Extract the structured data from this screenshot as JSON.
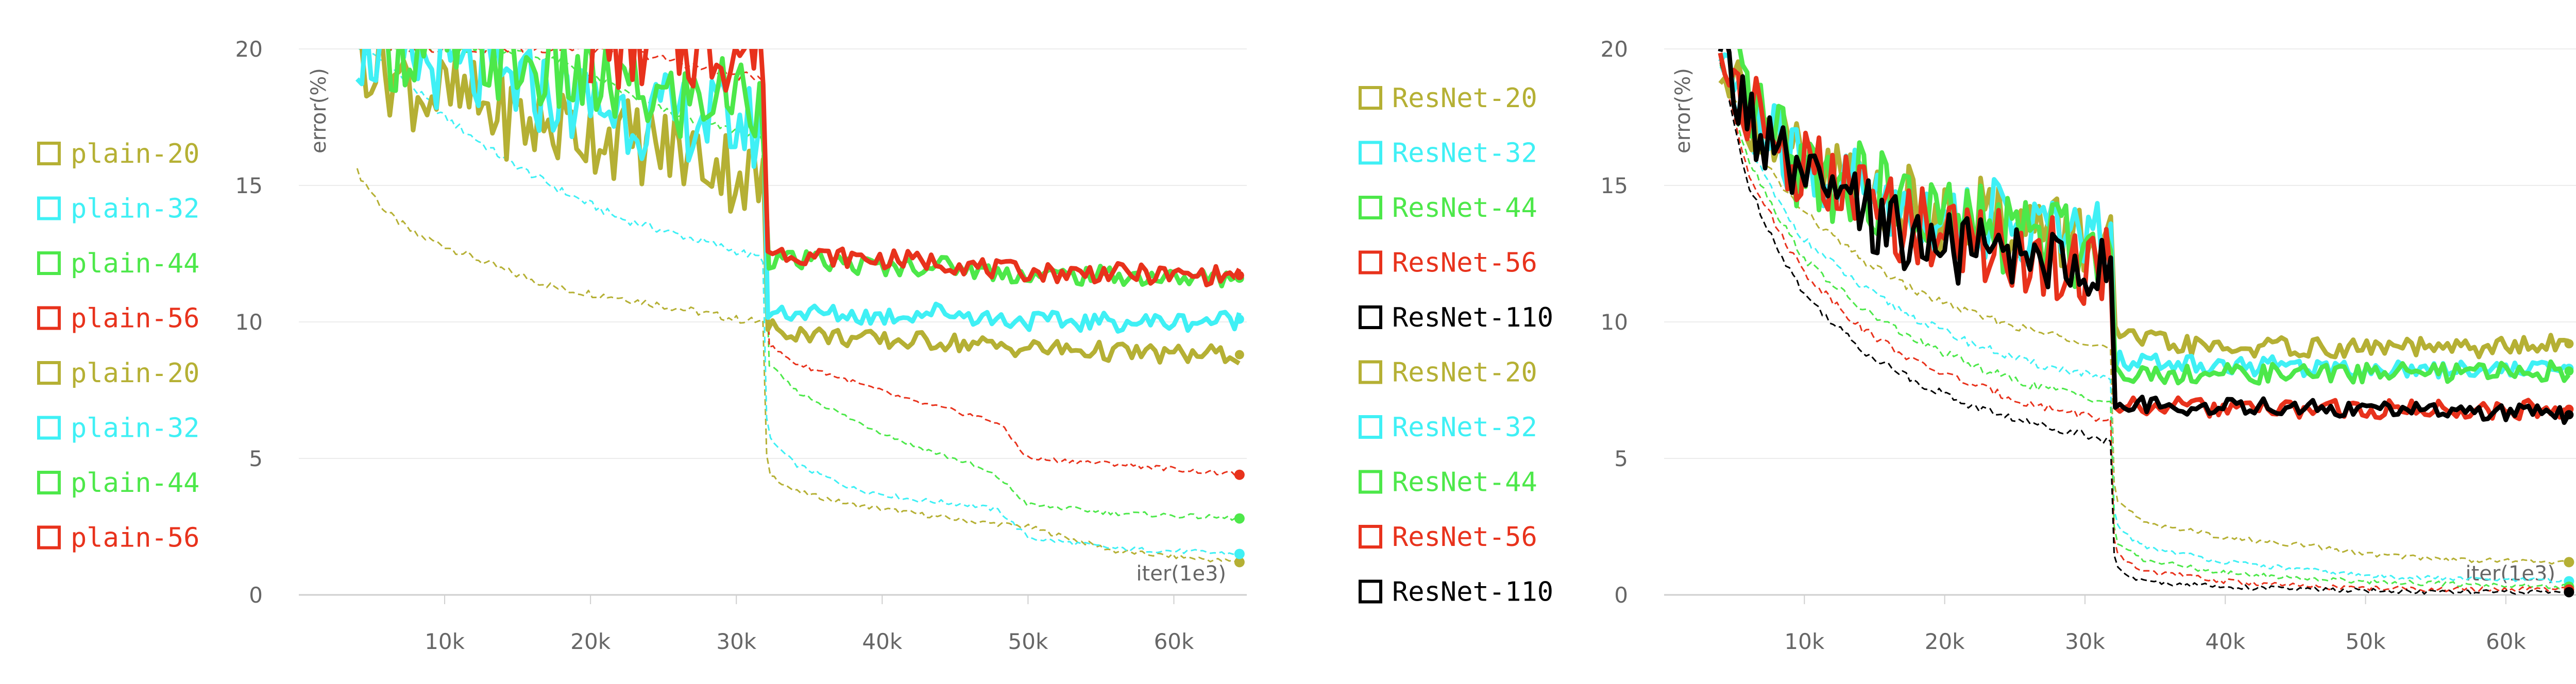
{
  "chart_data": [
    {
      "type": "line",
      "ylabel": "error(%)",
      "xlabel": "iter(1e3)",
      "xlim": [
        0,
        65000
      ],
      "ylim": [
        0,
        20
      ],
      "xticks": [
        {
          "value": 10000,
          "label": "10k"
        },
        {
          "value": 20000,
          "label": "20k"
        },
        {
          "value": 30000,
          "label": "30k"
        },
        {
          "value": 40000,
          "label": "40k"
        },
        {
          "value": 50000,
          "label": "50k"
        },
        {
          "value": 60000,
          "label": "60k"
        }
      ],
      "yticks": [
        {
          "value": 0,
          "label": "0"
        },
        {
          "value": 5,
          "label": "5"
        },
        {
          "value": 10,
          "label": "10"
        },
        {
          "value": 15,
          "label": "15"
        },
        {
          "value": 20,
          "label": "20"
        }
      ],
      "grid": true,
      "legend_position": "left",
      "legend": [
        {
          "label": "plain-20",
          "color": "#b5b034"
        },
        {
          "label": "plain-32",
          "color": "#3ff0f5"
        },
        {
          "label": "plain-44",
          "color": "#4de84a"
        },
        {
          "label": "plain-56",
          "color": "#e8321c"
        },
        {
          "label": "plain-20",
          "color": "#b5b034"
        },
        {
          "label": "plain-32",
          "color": "#3ff0f5"
        },
        {
          "label": "plain-44",
          "color": "#4de84a"
        },
        {
          "label": "plain-56",
          "color": "#e8321c"
        }
      ],
      "series": [
        {
          "name": "plain-20",
          "split": "train",
          "color": "#b5b034",
          "x": [
            4000,
            6000,
            8000,
            10000,
            14000,
            18000,
            22000,
            26000,
            30000,
            31900,
            32100,
            34000,
            38000,
            42000,
            46000,
            50000,
            56000,
            64500
          ],
          "y": [
            15.5,
            14.0,
            13.2,
            12.8,
            11.9,
            11.2,
            10.9,
            10.5,
            10.1,
            10.0,
            4.5,
            3.8,
            3.3,
            3.0,
            2.7,
            2.5,
            1.6,
            1.2
          ]
        },
        {
          "name": "plain-32",
          "split": "train",
          "color": "#3ff0f5",
          "x": [
            4000,
            6000,
            10000,
            14000,
            18000,
            22000,
            26000,
            30000,
            31900,
            32100,
            34000,
            38000,
            42000,
            46000,
            48000,
            50000,
            56000,
            64500
          ],
          "y": [
            20,
            19.5,
            17.5,
            16.0,
            14.8,
            13.8,
            13.2,
            12.6,
            12.3,
            5.8,
            4.8,
            3.9,
            3.5,
            3.3,
            3.1,
            2.1,
            1.7,
            1.5
          ]
        },
        {
          "name": "plain-44",
          "split": "train",
          "color": "#4de84a",
          "x": [
            6000,
            10000,
            14000,
            18000,
            22000,
            26000,
            30000,
            31900,
            32100,
            34000,
            38000,
            42000,
            46000,
            48000,
            50000,
            56000,
            64500
          ],
          "y": [
            20,
            20,
            20,
            19.5,
            18.5,
            17.5,
            17.0,
            16.8,
            8.5,
            7.5,
            6.4,
            5.5,
            4.8,
            4.3,
            3.3,
            3.0,
            2.8
          ]
        },
        {
          "name": "plain-56",
          "split": "train",
          "color": "#e8321c",
          "x": [
            6000,
            10000,
            14000,
            18000,
            22000,
            26000,
            30000,
            31900,
            32100,
            34000,
            38000,
            42000,
            46000,
            48000,
            50000,
            56000,
            64500
          ],
          "y": [
            20,
            20,
            20,
            20,
            20,
            19.5,
            19.0,
            19.0,
            9.2,
            8.5,
            7.8,
            7.1,
            6.6,
            6.3,
            5.0,
            4.8,
            4.4
          ]
        },
        {
          "name": "plain-20",
          "split": "test",
          "color": "#b5b034",
          "x": [
            4000,
            8000,
            12000,
            16000,
            20000,
            24000,
            28000,
            31900,
            32100,
            36000,
            40000,
            44000,
            48000,
            52000,
            56000,
            60000,
            64500
          ],
          "y": [
            20,
            18.5,
            18.0,
            17.2,
            17.0,
            16.5,
            16.0,
            15.0,
            9.8,
            9.5,
            9.3,
            9.3,
            9.1,
            9.0,
            8.9,
            8.8,
            8.8
          ]
        },
        {
          "name": "plain-32",
          "split": "test",
          "color": "#3ff0f5",
          "x": [
            4000,
            8000,
            12000,
            16000,
            20000,
            24000,
            28000,
            31900,
            32100,
            36000,
            40000,
            44000,
            48000,
            52000,
            56000,
            60000,
            64500
          ],
          "y": [
            20,
            19.5,
            19.0,
            18.5,
            18.0,
            17.5,
            17.5,
            17.0,
            10.4,
            10.3,
            10.2,
            10.4,
            10.1,
            10.0,
            10.0,
            10.0,
            10.1
          ]
        },
        {
          "name": "plain-44",
          "split": "test",
          "color": "#4de84a",
          "x": [
            6000,
            10000,
            14000,
            18000,
            22000,
            26000,
            30000,
            31900,
            32100,
            36000,
            40000,
            44000,
            48000,
            52000,
            56000,
            60000,
            64500
          ],
          "y": [
            20,
            20,
            19.5,
            19.0,
            18.5,
            18.0,
            18.5,
            18.0,
            12.3,
            12.2,
            12.0,
            12.1,
            11.8,
            11.7,
            11.7,
            11.6,
            11.6
          ]
        },
        {
          "name": "plain-56",
          "split": "test",
          "color": "#e8321c",
          "x": [
            20000,
            24000,
            28000,
            31900,
            32100,
            36000,
            40000,
            44000,
            48000,
            52000,
            56000,
            60000,
            64500
          ],
          "y": [
            20,
            20,
            20,
            20,
            12.6,
            12.4,
            12.3,
            12.2,
            11.9,
            11.8,
            11.8,
            11.7,
            11.7
          ]
        }
      ]
    },
    {
      "type": "line",
      "ylabel": "error(%)",
      "xlabel": "iter(1e3)",
      "xlim": [
        0,
        65000
      ],
      "ylim": [
        0,
        20
      ],
      "xticks": [
        {
          "value": 10000,
          "label": "10k"
        },
        {
          "value": 20000,
          "label": "20k"
        },
        {
          "value": 30000,
          "label": "30k"
        },
        {
          "value": 40000,
          "label": "40k"
        },
        {
          "value": 50000,
          "label": "50k"
        },
        {
          "value": 60000,
          "label": "60k"
        }
      ],
      "yticks": [
        {
          "value": 0,
          "label": "0"
        },
        {
          "value": 5,
          "label": "5"
        },
        {
          "value": 10,
          "label": "10"
        },
        {
          "value": 15,
          "label": "15"
        },
        {
          "value": 20,
          "label": "20"
        }
      ],
      "grid": true,
      "legend_position": "left",
      "legend": [
        {
          "label": "ResNet-20",
          "color": "#b5b034"
        },
        {
          "label": "ResNet-32",
          "color": "#3ff0f5"
        },
        {
          "label": "ResNet-44",
          "color": "#4de84a"
        },
        {
          "label": "ResNet-56",
          "color": "#e8321c"
        },
        {
          "label": "ResNet-110",
          "color": "#000000"
        },
        {
          "label": "ResNet-20",
          "color": "#b5b034"
        },
        {
          "label": "ResNet-32",
          "color": "#3ff0f5"
        },
        {
          "label": "ResNet-44",
          "color": "#4de84a"
        },
        {
          "label": "ResNet-56",
          "color": "#e8321c"
        },
        {
          "label": "ResNet-110",
          "color": "#000000"
        }
      ],
      "series": [
        {
          "name": "ResNet-20",
          "split": "train",
          "color": "#b5b034",
          "x": [
            4000,
            6000,
            8000,
            10000,
            14000,
            18000,
            22000,
            26000,
            30000,
            31900,
            32100,
            34000,
            40000,
            46000,
            50000,
            56000,
            64500
          ],
          "y": [
            19.5,
            17.0,
            15.2,
            14.0,
            12.3,
            11.1,
            10.3,
            9.7,
            9.3,
            9.0,
            3.5,
            2.7,
            2.1,
            1.8,
            1.5,
            1.3,
            1.2
          ]
        },
        {
          "name": "ResNet-32",
          "split": "train",
          "color": "#3ff0f5",
          "x": [
            4000,
            6000,
            8000,
            10000,
            14000,
            18000,
            22000,
            26000,
            30000,
            31900,
            32100,
            34000,
            40000,
            46000,
            50000,
            56000,
            64500
          ],
          "y": [
            19.5,
            16.5,
            14.5,
            13.0,
            11.3,
            10.1,
            9.2,
            8.5,
            8.1,
            7.8,
            2.6,
            1.8,
            1.2,
            0.9,
            0.7,
            0.6,
            0.5
          ]
        },
        {
          "name": "ResNet-44",
          "split": "train",
          "color": "#4de84a",
          "x": [
            4000,
            6000,
            8000,
            10000,
            14000,
            18000,
            22000,
            26000,
            30000,
            31900,
            32100,
            34000,
            40000,
            46000,
            50000,
            56000,
            64500
          ],
          "y": [
            19.5,
            16.0,
            14.0,
            12.3,
            10.5,
            9.3,
            8.4,
            7.7,
            7.3,
            7.0,
            2.0,
            1.3,
            0.8,
            0.6,
            0.5,
            0.4,
            0.3
          ]
        },
        {
          "name": "ResNet-56",
          "split": "train",
          "color": "#e8321c",
          "x": [
            4000,
            6000,
            8000,
            10000,
            14000,
            18000,
            22000,
            26000,
            30000,
            31900,
            32100,
            34000,
            40000,
            46000,
            50000,
            56000,
            64500
          ],
          "y": [
            19.5,
            15.5,
            13.5,
            11.8,
            9.8,
            8.5,
            7.7,
            7.0,
            6.6,
            6.3,
            1.5,
            0.9,
            0.5,
            0.3,
            0.25,
            0.2,
            0.2
          ]
        },
        {
          "name": "ResNet-110",
          "split": "train",
          "color": "#000000",
          "x": [
            4000,
            6000,
            8000,
            10000,
            14000,
            18000,
            22000,
            26000,
            30000,
            31900,
            32100,
            34000,
            40000,
            46000,
            50000,
            56000,
            64500
          ],
          "y": [
            19.5,
            15.0,
            12.8,
            11.0,
            9.0,
            7.8,
            6.9,
            6.3,
            5.9,
            5.6,
            1.0,
            0.5,
            0.3,
            0.2,
            0.15,
            0.1,
            0.1
          ]
        },
        {
          "name": "ResNet-20",
          "split": "test",
          "color": "#b5b034",
          "x": [
            4000,
            6000,
            8000,
            10000,
            14000,
            18000,
            22000,
            26000,
            30000,
            31900,
            32100,
            36000,
            40000,
            44000,
            48000,
            52000,
            56000,
            60000,
            64500
          ],
          "y": [
            20,
            18.0,
            16.5,
            15.5,
            15.0,
            14.0,
            14.0,
            13.5,
            13.0,
            13.0,
            9.5,
            9.2,
            9.0,
            9.1,
            9.0,
            9.1,
            9.0,
            9.1,
            9.2
          ]
        },
        {
          "name": "ResNet-32",
          "split": "test",
          "color": "#3ff0f5",
          "x": [
            4000,
            6000,
            8000,
            10000,
            14000,
            18000,
            22000,
            26000,
            30000,
            31900,
            32100,
            36000,
            40000,
            44000,
            48000,
            52000,
            56000,
            60000,
            64500
          ],
          "y": [
            20,
            18.0,
            16.5,
            15.5,
            15.0,
            14.0,
            13.8,
            13.5,
            13.0,
            12.8,
            8.6,
            8.5,
            8.4,
            8.4,
            8.3,
            8.3,
            8.3,
            8.3,
            8.3
          ]
        },
        {
          "name": "ResNet-44",
          "split": "test",
          "color": "#4de84a",
          "x": [
            4000,
            6000,
            8000,
            10000,
            14000,
            18000,
            22000,
            26000,
            30000,
            31900,
            32100,
            36000,
            40000,
            44000,
            48000,
            52000,
            56000,
            60000,
            64500
          ],
          "y": [
            20,
            18.0,
            16.5,
            15.5,
            15.0,
            14.0,
            13.5,
            13.2,
            12.8,
            12.5,
            8.2,
            8.1,
            8.1,
            8.1,
            8.1,
            8.2,
            8.1,
            8.2,
            8.2
          ]
        },
        {
          "name": "ResNet-56",
          "split": "test",
          "color": "#e8321c",
          "x": [
            4000,
            6000,
            8000,
            10000,
            14000,
            18000,
            22000,
            26000,
            30000,
            31900,
            32100,
            36000,
            40000,
            44000,
            48000,
            52000,
            56000,
            60000,
            64500
          ],
          "y": [
            20,
            18.0,
            16.5,
            15.5,
            14.5,
            13.5,
            13.0,
            12.5,
            12.0,
            12.0,
            7.0,
            6.9,
            6.8,
            6.8,
            6.8,
            6.8,
            6.8,
            6.8,
            6.8
          ]
        },
        {
          "name": "ResNet-110",
          "split": "test",
          "color": "#000000",
          "x": [
            4000,
            6000,
            8000,
            10000,
            14000,
            18000,
            22000,
            26000,
            30000,
            31900,
            32100,
            36000,
            40000,
            44000,
            48000,
            52000,
            56000,
            60000,
            64500
          ],
          "y": [
            20,
            17.5,
            16.0,
            15.0,
            14.0,
            13.0,
            12.5,
            12.5,
            12.0,
            12.0,
            7.0,
            6.9,
            6.9,
            6.9,
            6.8,
            6.8,
            6.7,
            6.7,
            6.6
          ]
        }
      ]
    }
  ]
}
